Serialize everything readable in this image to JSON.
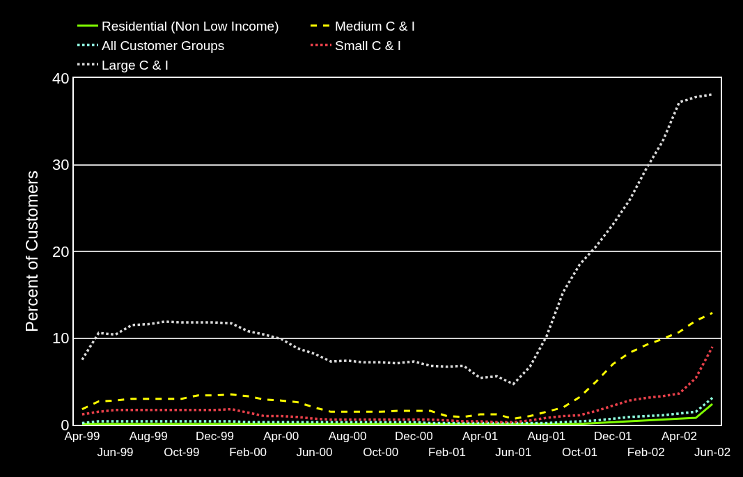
{
  "chart_data": {
    "type": "line",
    "ylabel": "Percent of Customers",
    "categories": [
      "Apr-99",
      null,
      "Jun-99",
      null,
      "Aug-99",
      null,
      "Oct-99",
      null,
      "Dec-99",
      null,
      "Feb-00",
      null,
      "Apr-00",
      null,
      "Jun-00",
      null,
      "Aug-00",
      null,
      "Oct-00",
      null,
      "Dec-00",
      null,
      "Feb-01",
      null,
      "Apr-01",
      null,
      "Jun-01",
      null,
      "Aug-01",
      null,
      "Oct-01",
      null,
      "Dec-01",
      null,
      "Feb-02",
      null,
      "Apr-02",
      null,
      "Jun-02"
    ],
    "series": [
      {
        "name": "Residential (Non Low Income)",
        "color": "#80ff00",
        "line_style": "solid",
        "values": [
          0.1,
          0.1,
          0.1,
          0.1,
          0.1,
          0.1,
          0.1,
          0.1,
          0.1,
          0.1,
          0.1,
          0.1,
          0.1,
          0.1,
          0.1,
          0.1,
          0.1,
          0.1,
          0.1,
          0.1,
          0.1,
          0.1,
          0.1,
          0.1,
          0.1,
          0.1,
          0.1,
          0.1,
          0.1,
          0.1,
          0.1,
          0.2,
          0.3,
          0.4,
          0.5,
          0.6,
          0.7,
          0.8,
          2.4
        ]
      },
      {
        "name": "Medium C & I",
        "color": "#ffff00",
        "line_style": "dashed",
        "values": [
          1.8,
          2.7,
          2.8,
          3.0,
          3.0,
          3.0,
          3.0,
          3.4,
          3.4,
          3.5,
          3.3,
          2.9,
          2.8,
          2.6,
          2.0,
          1.5,
          1.5,
          1.5,
          1.5,
          1.6,
          1.6,
          1.6,
          1.0,
          0.9,
          1.2,
          1.2,
          0.7,
          1.0,
          1.5,
          2.0,
          3.2,
          5.0,
          7.0,
          8.3,
          9.2,
          9.9,
          10.7,
          12.0,
          12.9
        ]
      },
      {
        "name": "All Customer Groups",
        "color": "#8fffdf",
        "line_style": "dotted",
        "values": [
          0.2,
          0.4,
          0.4,
          0.4,
          0.4,
          0.4,
          0.4,
          0.4,
          0.4,
          0.4,
          0.3,
          0.3,
          0.3,
          0.3,
          0.3,
          0.3,
          0.3,
          0.3,
          0.3,
          0.3,
          0.3,
          0.2,
          0.2,
          0.2,
          0.2,
          0.2,
          0.2,
          0.2,
          0.2,
          0.3,
          0.4,
          0.5,
          0.7,
          0.9,
          1.0,
          1.1,
          1.3,
          1.5,
          3.1
        ]
      },
      {
        "name": "Small C & I",
        "color": "#e8404a",
        "line_style": "dotted",
        "values": [
          1.2,
          1.5,
          1.7,
          1.7,
          1.7,
          1.7,
          1.7,
          1.7,
          1.7,
          1.8,
          1.4,
          1.0,
          1.0,
          0.9,
          0.7,
          0.6,
          0.6,
          0.6,
          0.6,
          0.6,
          0.6,
          0.6,
          0.5,
          0.4,
          0.4,
          0.3,
          0.3,
          0.5,
          0.8,
          1.0,
          1.1,
          1.6,
          2.2,
          2.8,
          3.1,
          3.3,
          3.6,
          5.4,
          9.0
        ]
      },
      {
        "name": "Large C & I",
        "color": "#d9d9d9",
        "line_style": "dotted",
        "values": [
          7.5,
          10.6,
          10.4,
          11.5,
          11.6,
          11.9,
          11.8,
          11.8,
          11.8,
          11.7,
          10.8,
          10.4,
          9.9,
          8.8,
          8.2,
          7.3,
          7.4,
          7.2,
          7.2,
          7.1,
          7.3,
          6.8,
          6.7,
          6.8,
          5.4,
          5.6,
          4.7,
          6.7,
          10.2,
          15.3,
          18.5,
          20.6,
          23.1,
          25.9,
          29.5,
          32.7,
          37.2,
          37.8,
          38.1
        ]
      }
    ],
    "ylim": [
      0,
      40
    ],
    "yticks": [
      0,
      10,
      20,
      30,
      40
    ],
    "grid": "y",
    "legend": "top",
    "marker": "none"
  }
}
